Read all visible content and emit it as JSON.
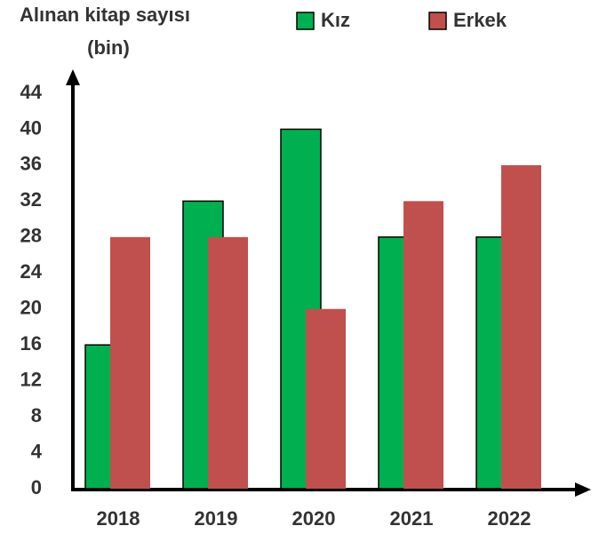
{
  "chart_data": {
    "type": "bar",
    "ylabel": [
      "Alınan kitap sayısı",
      "(bin)"
    ],
    "categories": [
      "2018",
      "2019",
      "2020",
      "2021",
      "2022"
    ],
    "series": [
      {
        "name": "Kız",
        "color": "#00b050",
        "values": [
          16,
          32,
          40,
          28,
          28
        ]
      },
      {
        "name": "Erkek",
        "color": "#c0504d",
        "values": [
          28,
          28,
          20,
          32,
          36
        ]
      }
    ],
    "ylim": [
      0,
      44
    ],
    "yticks": [
      0,
      4,
      8,
      12,
      16,
      20,
      24,
      28,
      32,
      36,
      40,
      44
    ]
  }
}
